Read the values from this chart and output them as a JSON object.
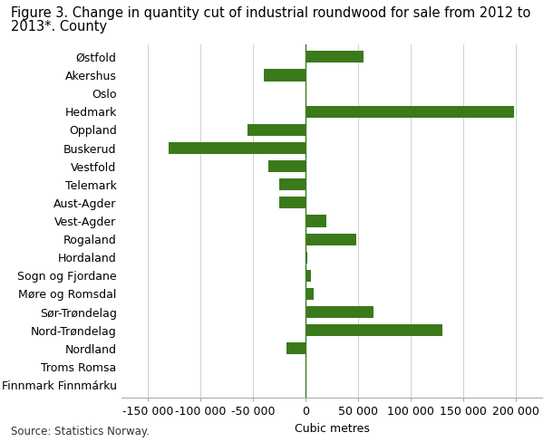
{
  "title_line1": "Figure 3. Change in quantity cut of industrial roundwood for sale from 2012 to",
  "title_line2": "2013*. County",
  "categories": [
    "Østfold",
    "Akershus",
    "Oslo",
    "Hedmark",
    "Oppland",
    "Buskerud",
    "Vestfold",
    "Telemark",
    "Aust-Agder",
    "Vest-Agder",
    "Rogaland",
    "Hordaland",
    "Sogn og Fjordane",
    "Møre og Romsdal",
    "Sør-Trøndelag",
    "Nord-Trøndelag",
    "Nordland",
    "Troms Romsa",
    "Finnmark Finnmárku"
  ],
  "values": [
    55000,
    -40000,
    1000,
    198000,
    -55000,
    -130000,
    -35000,
    -25000,
    -25000,
    20000,
    48000,
    1500,
    5000,
    8000,
    65000,
    130000,
    -18000,
    500,
    0
  ],
  "bar_color": "#3a7a1a",
  "xlabel": "Cubic metres",
  "xlim": [
    -175000,
    225000
  ],
  "xticks": [
    -150000,
    -100000,
    -50000,
    0,
    50000,
    100000,
    150000,
    200000
  ],
  "xtick_labels": [
    "-150 000",
    "-100 000",
    "-50 000",
    "0",
    "50 000",
    "100 000",
    "150 000",
    "200 000"
  ],
  "source_text": "Source: Statistics Norway.",
  "background_color": "#ffffff",
  "grid_color": "#d0d0d0",
  "zeroline_color": "#3a7a1a",
  "title_fontsize": 10.5,
  "label_fontsize": 9,
  "tick_fontsize": 9,
  "source_fontsize": 8.5
}
